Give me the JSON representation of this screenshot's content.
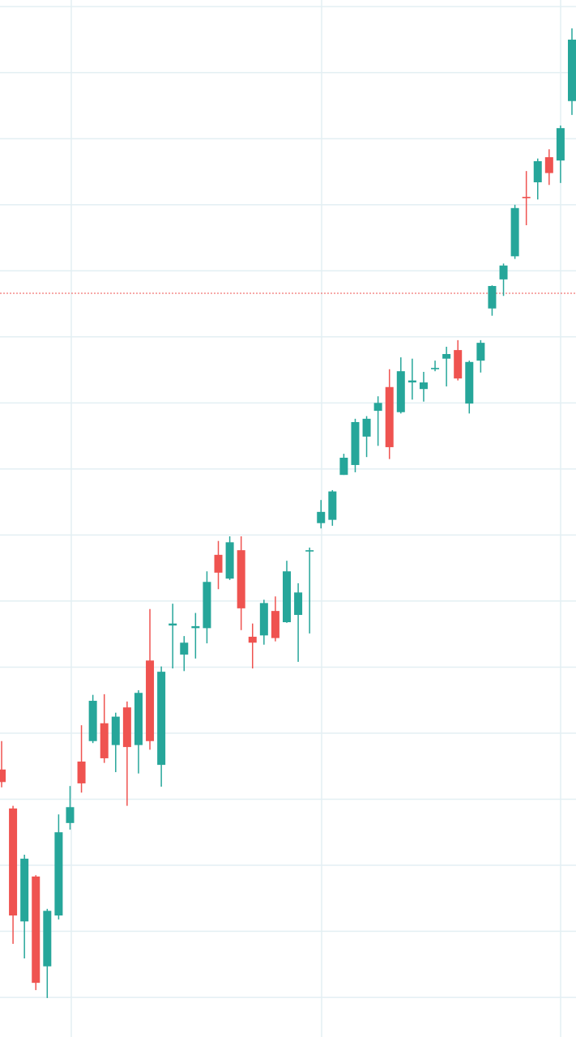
{
  "chart_data": {
    "type": "candlestick",
    "categories": [
      null,
      null,
      null,
      null,
      null,
      null,
      null,
      null,
      null,
      null,
      null,
      null,
      null,
      null,
      null,
      null,
      null,
      null,
      null,
      null,
      null,
      null,
      null,
      null,
      null,
      null,
      null,
      null,
      null,
      null,
      null,
      null,
      null,
      null,
      null,
      null,
      null,
      null,
      null,
      null,
      null,
      null,
      null,
      null,
      null,
      null,
      null,
      null,
      null,
      null,
      null
    ],
    "open": [
      34.5,
      28.6,
      11.5,
      18.3,
      4.7,
      12.4,
      26.4,
      35.7,
      38.8,
      41.5,
      38.2,
      43.9,
      38.2,
      51.0,
      35.2,
      56.3,
      51.9,
      55.9,
      55.9,
      67.0,
      63.4,
      67.7,
      54.6,
      54.8,
      58.5,
      56.8,
      57.9,
      67.5,
      71.8,
      72.3,
      79.1,
      80.6,
      84.9,
      88.8,
      92.4,
      88.6,
      93.1,
      92.1,
      95.1,
      96.7,
      98.0,
      89.9,
      96.4,
      104.3,
      108.7,
      112.2,
      121.2,
      123.4,
      127.2,
      126.7,
      135.7
    ],
    "high": [
      38.8,
      29.0,
      21.6,
      18.5,
      13.4,
      27.7,
      32.0,
      41.2,
      45.8,
      45.9,
      43.1,
      44.8,
      46.5,
      58.8,
      50.1,
      59.6,
      54.7,
      58.2,
      64.5,
      69.1,
      69.8,
      69.8,
      56.6,
      60.2,
      60.7,
      66.1,
      62.7,
      68.1,
      75.3,
      76.8,
      82.3,
      87.6,
      88.0,
      91.0,
      95.1,
      96.9,
      96.7,
      94.7,
      96.4,
      98.5,
      99.5,
      96.4,
      99.5,
      107.8,
      111.1,
      120.0,
      125.1,
      127.0,
      128.4,
      132.0,
      146.7
    ],
    "low": [
      31.8,
      8.1,
      5.9,
      1.1,
      -0.1,
      11.8,
      25.4,
      31.0,
      38.5,
      35.5,
      34.1,
      29.0,
      33.9,
      37.5,
      31.9,
      49.8,
      49.4,
      51.3,
      53.6,
      61.8,
      63.2,
      55.6,
      49.8,
      53.4,
      53.9,
      56.7,
      50.8,
      55.1,
      71.0,
      71.4,
      79.1,
      79.5,
      81.8,
      83.5,
      81.5,
      88.4,
      90.5,
      90.2,
      94.8,
      92.5,
      93.4,
      88.4,
      94.6,
      103.2,
      106.2,
      111.8,
      116.9,
      120.8,
      123.0,
      123.3,
      133.6
    ],
    "close": [
      32.6,
      12.4,
      21.0,
      2.2,
      13.1,
      25.0,
      28.8,
      32.4,
      44.9,
      36.2,
      42.5,
      37.9,
      46.1,
      38.8,
      49.3,
      56.6,
      53.7,
      56.2,
      62.9,
      64.3,
      68.9,
      58.9,
      53.7,
      59.7,
      54.4,
      64.5,
      61.3,
      67.7,
      73.5,
      76.6,
      81.7,
      87.1,
      87.6,
      90.0,
      83.3,
      94.8,
      93.4,
      93.1,
      95.3,
      97.4,
      93.7,
      96.2,
      99.1,
      107.7,
      110.8,
      119.5,
      121.0,
      126.6,
      124.8,
      131.6,
      145.0
    ],
    "up_color": "#26a69a",
    "down_color": "#ef5350",
    "ylim": [
      -6,
      151
    ],
    "yticks": [
      0,
      10,
      20,
      30,
      40,
      50,
      60,
      70,
      80,
      90,
      100,
      110,
      120,
      130,
      140,
      150
    ],
    "grid": true,
    "reference_line": {
      "value": 106.6,
      "color": "#ef5350"
    }
  }
}
